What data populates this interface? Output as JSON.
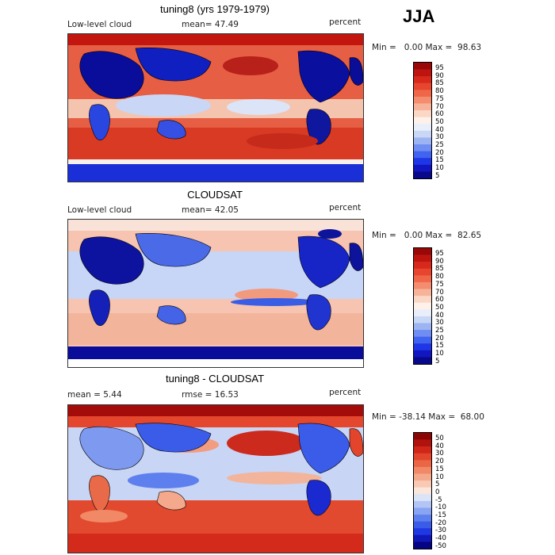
{
  "season": "JJA",
  "colors": {
    "pos_scale": [
      "#08088a",
      "#1216c0",
      "#1f36e6",
      "#4064f0",
      "#6f8df2",
      "#9db4f3",
      "#c9d7f6",
      "#e9eefb",
      "#fdf1ea",
      "#fbd7c6",
      "#f7b39a",
      "#f48d6f",
      "#ef6648",
      "#e7452d",
      "#d7281c",
      "#bd1410",
      "#990707"
    ],
    "diff_scale": [
      "#050583",
      "#1019b8",
      "#1f38e2",
      "#3a5ce8",
      "#5e80ee",
      "#88a4f2",
      "#b2c5f5",
      "#dae4f9",
      "#fbe6dc",
      "#f9c9b4",
      "#f5a98c",
      "#f18866",
      "#eb6644",
      "#e2452b",
      "#cf2619",
      "#b0120e",
      "#8c0404"
    ],
    "ocean_warm": "#e6533a",
    "land_cold": "#1c2fd6"
  },
  "panels": [
    {
      "title": "tuning8 (yrs 1979-1979)",
      "left_label": "Low-level cloud",
      "stat1": "mean=  47.49",
      "stat2": "",
      "units": "percent",
      "minmax": "Min =   0.00 Max =  98.63",
      "colorbar_ticks": [
        "95",
        "90",
        "85",
        "80",
        "75",
        "70",
        "60",
        "50",
        "40",
        "30",
        "25",
        "20",
        "15",
        "10",
        "5"
      ]
    },
    {
      "title": "CLOUDSAT",
      "left_label": "Low-level cloud",
      "stat1": "mean=  42.05",
      "stat2": "",
      "units": "percent",
      "minmax": "Min =   0.00 Max =  82.65",
      "colorbar_ticks": [
        "95",
        "90",
        "85",
        "80",
        "75",
        "70",
        "60",
        "50",
        "40",
        "30",
        "25",
        "20",
        "15",
        "10",
        "5"
      ]
    },
    {
      "title": "tuning8 - CLOUDSAT",
      "left_label": "mean =   5.44",
      "stat1": "rmse =  16.53",
      "stat2": "",
      "units": "percent",
      "minmax": "Min = -38.14 Max =  68.00",
      "colorbar_ticks": [
        "50",
        "40",
        "30",
        "20",
        "15",
        "10",
        "5",
        "0",
        "-5",
        "-10",
        "-15",
        "-20",
        "-30",
        "-40",
        "-50"
      ]
    }
  ]
}
